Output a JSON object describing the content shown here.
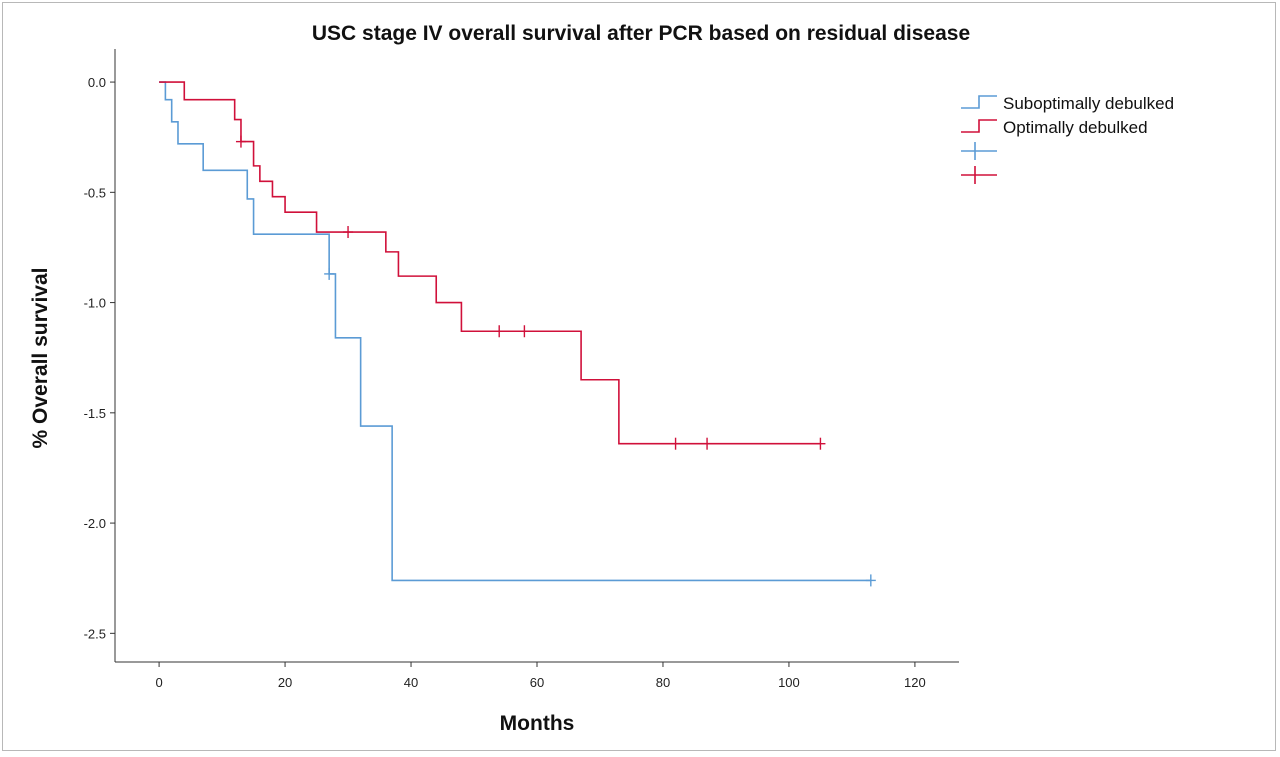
{
  "chart_data": {
    "type": "line",
    "title": "USC stage IV overall survival after PCR based on residual disease",
    "xlabel": "Months",
    "ylabel": "% Overall survival",
    "xlim": [
      -7,
      127
    ],
    "ylim": [
      -2.63,
      0.15
    ],
    "xticks": [
      0,
      20,
      40,
      60,
      80,
      100,
      120
    ],
    "yticks": [
      0.0,
      -0.5,
      -1.0,
      -1.5,
      -2.0,
      -2.5
    ],
    "xtick_labels": [
      "0",
      "20",
      "40",
      "60",
      "80",
      "100",
      "120"
    ],
    "ytick_labels": [
      "0.0",
      "-0.5",
      "-1.0",
      "-1.5",
      "-2.0",
      "-2.5"
    ],
    "grid": false,
    "legend_position": "right",
    "series": [
      {
        "name": "Suboptimally debulked",
        "color": "#5b9bd5",
        "style": "step",
        "points": [
          [
            0,
            0.0
          ],
          [
            1,
            -0.08
          ],
          [
            2,
            -0.18
          ],
          [
            3,
            -0.28
          ],
          [
            7,
            -0.4
          ],
          [
            14,
            -0.53
          ],
          [
            15,
            -0.69
          ],
          [
            27,
            -0.87
          ],
          [
            28,
            -1.16
          ],
          [
            32,
            -1.56
          ],
          [
            37,
            -2.26
          ],
          [
            113,
            -2.26
          ]
        ],
        "censored": [
          [
            27,
            -0.87
          ],
          [
            113,
            -2.26
          ]
        ]
      },
      {
        "name": "Optimally debulked",
        "color": "#d0103a",
        "style": "step",
        "points": [
          [
            0,
            0.0
          ],
          [
            4,
            -0.08
          ],
          [
            12,
            -0.17
          ],
          [
            13,
            -0.27
          ],
          [
            15,
            -0.38
          ],
          [
            16,
            -0.45
          ],
          [
            18,
            -0.52
          ],
          [
            20,
            -0.59
          ],
          [
            25,
            -0.68
          ],
          [
            36,
            -0.77
          ],
          [
            38,
            -0.88
          ],
          [
            44,
            -1.0
          ],
          [
            48,
            -1.13
          ],
          [
            67,
            -1.35
          ],
          [
            73,
            -1.64
          ],
          [
            105,
            -1.64
          ]
        ],
        "censored": [
          [
            13,
            -0.27
          ],
          [
            30,
            -0.68
          ],
          [
            54,
            -1.13
          ],
          [
            58,
            -1.13
          ],
          [
            82,
            -1.64
          ],
          [
            87,
            -1.64
          ],
          [
            105,
            -1.64
          ]
        ]
      }
    ],
    "legend": [
      {
        "label": "Suboptimally debulked",
        "marker": "line",
        "color": "#5b9bd5"
      },
      {
        "label": "Optimally debulked",
        "marker": "line",
        "color": "#d0103a"
      },
      {
        "label": "",
        "marker": "cross",
        "color": "#5b9bd5"
      },
      {
        "label": "",
        "marker": "cross",
        "color": "#d0103a"
      }
    ]
  }
}
